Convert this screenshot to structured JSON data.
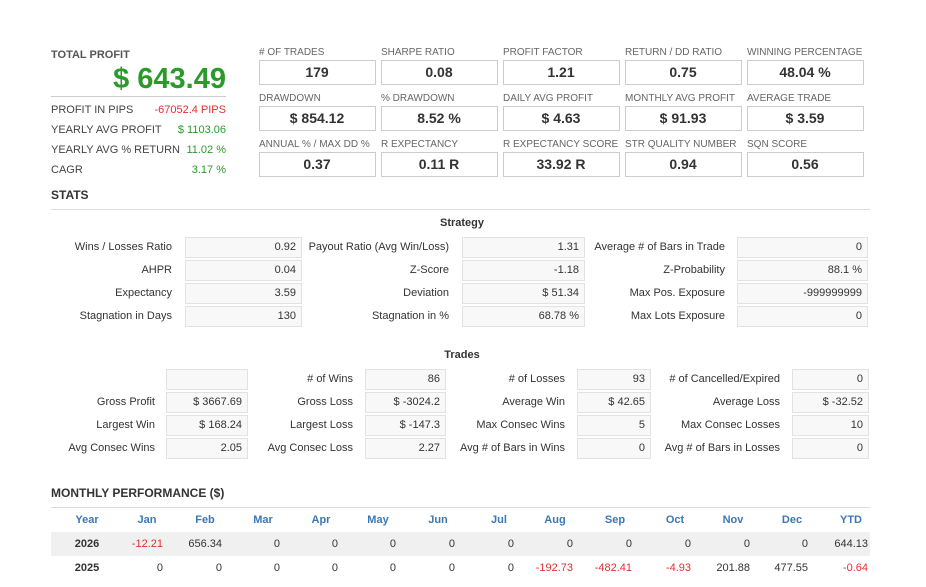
{
  "summary": {
    "title": "TOTAL PROFIT",
    "value": "$ 643.49",
    "rows": [
      {
        "label": "PROFIT IN PIPS",
        "value": "-67052.4 PIPS"
      },
      {
        "label": "YEARLY AVG PROFIT",
        "value": "$ 1103.06"
      },
      {
        "label": "YEARLY AVG % RETURN",
        "value": "11.02 %"
      },
      {
        "label": "CAGR",
        "value": "3.17 %"
      }
    ]
  },
  "metrics": [
    [
      {
        "label": "# OF TRADES",
        "value": "179"
      },
      {
        "label": "SHARPE RATIO",
        "value": "0.08"
      },
      {
        "label": "PROFIT FACTOR",
        "value": "1.21"
      },
      {
        "label": "RETURN / DD RATIO",
        "value": "0.75"
      },
      {
        "label": "WINNING PERCENTAGE",
        "value": "48.04 %"
      }
    ],
    [
      {
        "label": "DRAWDOWN",
        "value": "$ 854.12"
      },
      {
        "label": "% DRAWDOWN",
        "value": "8.52 %"
      },
      {
        "label": "DAILY AVG PROFIT",
        "value": "$ 4.63"
      },
      {
        "label": "MONTHLY AVG PROFIT",
        "value": "$ 91.93"
      },
      {
        "label": "AVERAGE TRADE",
        "value": "$ 3.59"
      }
    ],
    [
      {
        "label": "ANNUAL % / MAX DD %",
        "value": "0.37"
      },
      {
        "label": "R EXPECTANCY",
        "value": "0.11 R"
      },
      {
        "label": "R EXPECTANCY SCORE",
        "value": "33.92 R"
      },
      {
        "label": "STR QUALITY NUMBER",
        "value": "0.94"
      },
      {
        "label": "SQN SCORE",
        "value": "0.56"
      }
    ]
  ],
  "stats": {
    "title": "STATS",
    "strategy": {
      "title": "Strategy",
      "rows": [
        [
          {
            "label": "Wins / Losses Ratio",
            "value": "0.92"
          },
          {
            "label": "Payout Ratio (Avg Win/Loss)",
            "value": "1.31"
          },
          {
            "label": "Average # of Bars in Trade",
            "value": "0"
          }
        ],
        [
          {
            "label": "AHPR",
            "value": "0.04"
          },
          {
            "label": "Z-Score",
            "value": "-1.18"
          },
          {
            "label": "Z-Probability",
            "value": "88.1 %"
          }
        ],
        [
          {
            "label": "Expectancy",
            "value": "3.59"
          },
          {
            "label": "Deviation",
            "value": "$ 51.34"
          },
          {
            "label": "Max Pos. Exposure",
            "value": "-999999999"
          }
        ],
        [
          {
            "label": "Stagnation in Days",
            "value": "130"
          },
          {
            "label": "Stagnation in %",
            "value": "68.78 %"
          },
          {
            "label": "Max Lots Exposure",
            "value": "0"
          }
        ]
      ]
    },
    "trades": {
      "title": "Trades",
      "rows": [
        [
          null,
          {
            "label": "# of Wins",
            "value": "86"
          },
          {
            "label": "# of Losses",
            "value": "93"
          },
          {
            "label": "# of Cancelled/Expired",
            "value": "0"
          }
        ],
        [
          {
            "label": "Gross Profit",
            "value": "$ 3667.69"
          },
          {
            "label": "Gross Loss",
            "value": "$ -3024.2"
          },
          {
            "label": "Average Win",
            "value": "$ 42.65"
          },
          {
            "label": "Average Loss",
            "value": "$ -32.52"
          }
        ],
        [
          {
            "label": "Largest Win",
            "value": "$ 168.24"
          },
          {
            "label": "Largest Loss",
            "value": "$ -147.3"
          },
          {
            "label": "Max Consec Wins",
            "value": "5"
          },
          {
            "label": "Max Consec Losses",
            "value": "10"
          }
        ],
        [
          {
            "label": "Avg Consec Wins",
            "value": "2.05"
          },
          {
            "label": "Avg Consec Loss",
            "value": "2.27"
          },
          {
            "label": "Avg # of Bars in Wins",
            "value": "0"
          },
          {
            "label": "Avg # of Bars in Losses",
            "value": "0"
          }
        ]
      ]
    }
  },
  "monthly": {
    "title": "MONTHLY PERFORMANCE ($)",
    "header": [
      "Year",
      "Jan",
      "Feb",
      "Mar",
      "Apr",
      "May",
      "Jun",
      "Jul",
      "Aug",
      "Sep",
      "Oct",
      "Nov",
      "Dec",
      "YTD"
    ],
    "rows": [
      [
        "2026",
        "-12.21",
        "656.34",
        "0",
        "0",
        "0",
        "0",
        "0",
        "0",
        "0",
        "0",
        "0",
        "0",
        "644.13"
      ],
      [
        "2025",
        "0",
        "0",
        "0",
        "0",
        "0",
        "0",
        "0",
        "-192.73",
        "-482.41",
        "-4.93",
        "201.88",
        "477.55",
        "-0.64"
      ]
    ]
  }
}
